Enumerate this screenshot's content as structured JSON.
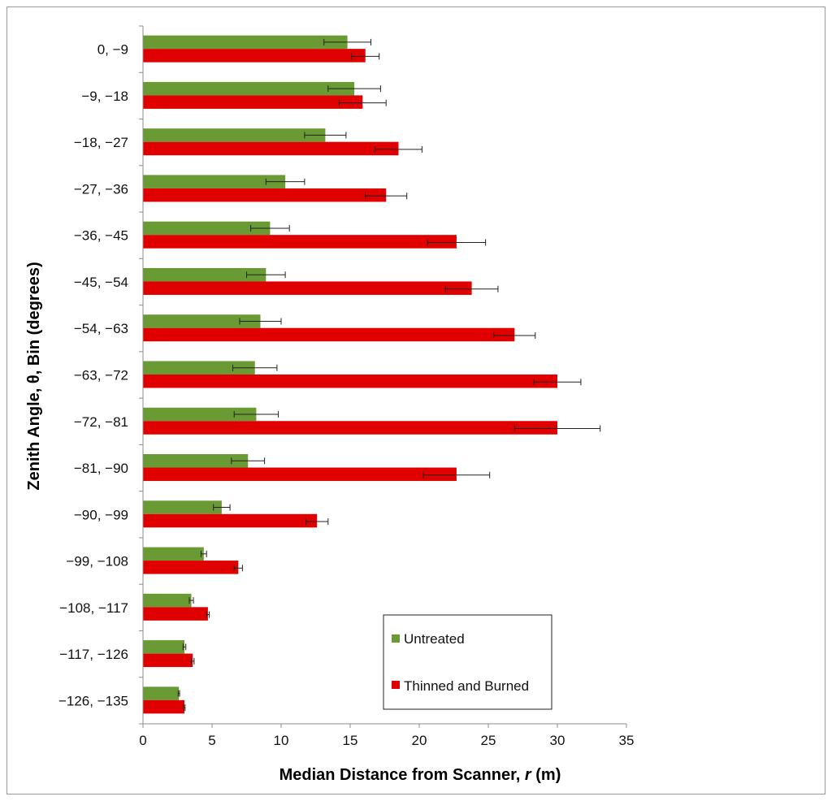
{
  "chart_data": {
    "type": "bar",
    "orientation": "horizontal",
    "title": "",
    "xlabel_prefix": "Median Distance from Scanner, ",
    "xlabel_var": "r",
    "xlabel_suffix": " (m)",
    "ylabel": "Zenith Angle, θ, Bin (degrees)",
    "xlim": [
      0,
      35
    ],
    "xticks": [
      0,
      5,
      10,
      15,
      20,
      25,
      30,
      35
    ],
    "grid": false,
    "legend_position": "bottom-right",
    "categories": [
      "0, −9",
      "−9, −18",
      "−18, −27",
      "−27, −36",
      "−36, −45",
      "−45, −54",
      "−54, −63",
      "−63, −72",
      "−72, −81",
      "−81, −90",
      "−90, −99",
      "−99, −108",
      "−108, −117",
      "−117, −126",
      "−126, −135"
    ],
    "series": [
      {
        "name": "Untreated",
        "color": "#6a9a34",
        "values": [
          14.8,
          15.3,
          13.2,
          10.3,
          9.2,
          8.9,
          8.5,
          8.1,
          8.2,
          7.6,
          5.7,
          4.4,
          3.5,
          3.0,
          2.6
        ],
        "errors": [
          1.7,
          1.9,
          1.5,
          1.4,
          1.4,
          1.4,
          1.5,
          1.6,
          1.6,
          1.2,
          0.6,
          0.2,
          0.15,
          0.1,
          0.05
        ]
      },
      {
        "name": "Thinned and Burned",
        "color": "#e00000",
        "values": [
          16.1,
          15.9,
          18.5,
          17.6,
          22.7,
          23.8,
          26.9,
          30.0,
          30.0,
          22.7,
          12.6,
          6.9,
          4.7,
          3.6,
          3.0
        ],
        "errors": [
          1.0,
          1.7,
          1.7,
          1.5,
          2.1,
          1.9,
          1.5,
          1.7,
          3.1,
          2.4,
          0.8,
          0.3,
          0.1,
          0.1,
          0.05
        ]
      }
    ]
  }
}
